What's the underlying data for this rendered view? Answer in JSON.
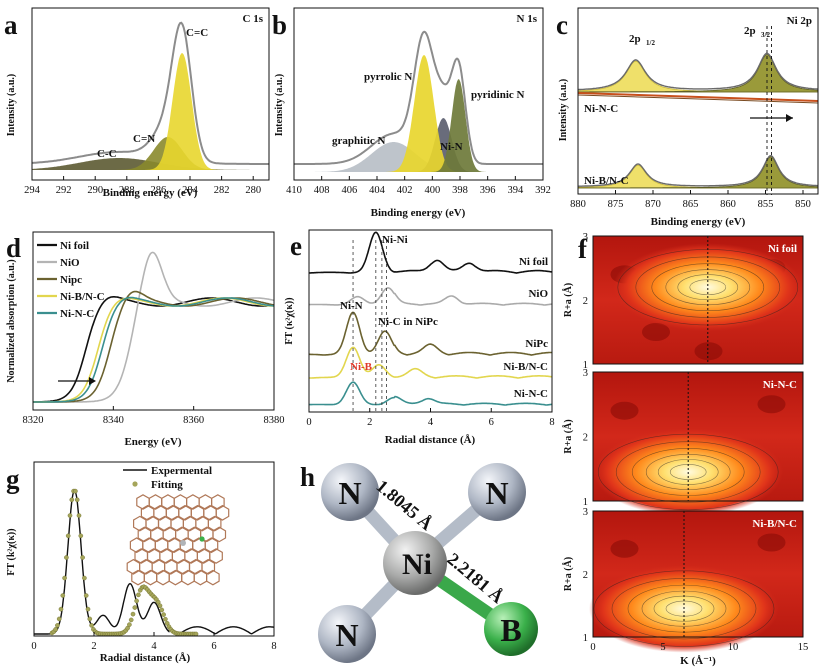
{
  "chart_data": [
    {
      "panel": "a",
      "type": "line",
      "title": "C 1s",
      "xlabel": "Binding energy (eV)",
      "ylabel": "Intensity (a.u.)",
      "xlim": [
        294,
        279
      ],
      "ylim": [
        0,
        1
      ],
      "xticks": [
        294,
        292,
        290,
        288,
        286,
        284,
        282,
        280
      ],
      "peaks": [
        {
          "name": "C=C",
          "center": 284.5,
          "height": 0.78,
          "width": 0.6,
          "color": "#e8d62e"
        },
        {
          "name": "C=N",
          "center": 285.4,
          "height": 0.22,
          "width": 0.9,
          "color": "#8a8a2c"
        },
        {
          "name": "C-C",
          "center": 288.5,
          "height": 0.08,
          "width": 2.5,
          "color": "#5c5a32"
        }
      ],
      "annotations": [
        "C=C",
        "C=N",
        "C-C"
      ]
    },
    {
      "panel": "b",
      "type": "line",
      "title": "N 1s",
      "xlabel": "Binding energy (eV)",
      "ylabel": "Intensity (a.u.)",
      "xlim": [
        410,
        392
      ],
      "ylim": [
        0,
        1
      ],
      "xticks": [
        410,
        408,
        406,
        404,
        402,
        400,
        398,
        396,
        394,
        392
      ],
      "peaks": [
        {
          "name": "pyrrolic N",
          "center": 400.6,
          "height": 0.78,
          "width": 0.7,
          "color": "#e8d62e"
        },
        {
          "name": "pyridinic N",
          "center": 398.1,
          "height": 0.62,
          "width": 0.5,
          "color": "#6e7a3a"
        },
        {
          "name": "Ni-N",
          "center": 399.2,
          "height": 0.36,
          "width": 0.6,
          "color": "#5c6070"
        },
        {
          "name": "graphitic N",
          "center": 402.8,
          "height": 0.2,
          "width": 1.6,
          "color": "#b9bfc7"
        }
      ],
      "annotations": [
        "pyrrolic N",
        "pyridinic N",
        "Ni-N",
        "graphitic N"
      ]
    },
    {
      "panel": "c",
      "type": "line",
      "title": "Ni 2p",
      "xlabel": "Binding energy (eV)",
      "ylabel": "Intensity (a.u.)",
      "xlim": [
        880,
        848
      ],
      "ylim": [
        0,
        1
      ],
      "xticks": [
        880,
        875,
        870,
        865,
        860,
        855,
        850
      ],
      "series": [
        {
          "name": "Ni-N-C",
          "peaks": [
            {
              "name": "2p1/2",
              "center": 872.3,
              "height": 0.28,
              "width": 1.6
            },
            {
              "name": "2p3/2",
              "center": 854.8,
              "height": 0.34,
              "width": 1.5
            }
          ]
        },
        {
          "name": "Ni-B/N-C",
          "peaks": [
            {
              "name": "2p1/2",
              "center": 872.0,
              "height": 0.19,
              "width": 1.4
            },
            {
              "name": "2p3/2",
              "center": 854.3,
              "height": 0.26,
              "width": 1.3
            }
          ]
        }
      ],
      "annotations": [
        "2p",
        "1/2",
        "2p",
        "3/2"
      ]
    },
    {
      "panel": "d",
      "type": "line",
      "xlabel": "Energy (eV)",
      "ylabel": "Normalized absorption (a.u.)",
      "xlim": [
        8320,
        8380
      ],
      "xticks": [
        8320,
        8340,
        8360,
        8380
      ],
      "series": [
        {
          "name": "Ni foil",
          "color": "#111111",
          "edge": 8333,
          "white_line": 1.04
        },
        {
          "name": "NiO",
          "color": "#b4b4b4",
          "edge": 8344,
          "white_line": 1.5
        },
        {
          "name": "Nipc",
          "color": "#6b6230",
          "edge": 8339,
          "white_line": 1.1
        },
        {
          "name": "Ni-B/N-C",
          "color": "#e2d64e",
          "edge": 8336,
          "white_line": 1.02
        },
        {
          "name": "Ni-N-C",
          "color": "#3a8f8f",
          "edge": 8337,
          "white_line": 1.03
        }
      ]
    },
    {
      "panel": "e",
      "type": "line",
      "xlabel": "Radial distance (Å)",
      "ylabel": "FT (κ²χ(κ))",
      "xlim": [
        0,
        8
      ],
      "xticks": [
        0,
        2,
        4,
        6,
        8
      ],
      "series": [
        {
          "name": "Ni foil",
          "color": "#111111",
          "peaks": [
            [
              2.2,
              1.0
            ],
            [
              4.2,
              0.3
            ],
            [
              5.3,
              0.22
            ]
          ]
        },
        {
          "name": "NiO",
          "color": "#aaaaaa",
          "peaks": [
            [
              1.6,
              0.28
            ],
            [
              2.6,
              0.6
            ],
            [
              4.7,
              0.28
            ]
          ]
        },
        {
          "name": "NiPc",
          "color": "#6b6230",
          "peaks": [
            [
              1.45,
              1.0
            ],
            [
              2.5,
              0.55
            ],
            [
              4.0,
              0.2
            ]
          ]
        },
        {
          "name": "Ni-B/N-C",
          "color": "#e2d64e",
          "peaks": [
            [
              1.45,
              0.85
            ],
            [
              2.3,
              0.35
            ],
            [
              3.5,
              0.2
            ]
          ]
        },
        {
          "name": "Ni-N-C",
          "color": "#3a8f8f",
          "peaks": [
            [
              1.45,
              0.8
            ],
            [
              2.8,
              0.25
            ],
            [
              3.9,
              0.2
            ]
          ]
        }
      ],
      "annotations": [
        "Ni-Ni",
        "Ni-N",
        "Ni-C in NiPc",
        "Ni-B"
      ]
    },
    {
      "panel": "f",
      "type": "heatmap",
      "xlabel": "K (Å⁻¹)",
      "ylabel": "R+a (Å)",
      "xlim": [
        0,
        15
      ],
      "ylim": [
        1,
        3
      ],
      "xticks": [
        0,
        5,
        10,
        15
      ],
      "yticks": [
        1,
        2,
        3
      ],
      "maps": [
        {
          "name": "Ni foil",
          "k_max": 8.2,
          "r_max": 2.2
        },
        {
          "name": "Ni-N-C",
          "k_max": 6.8,
          "r_max": 1.45
        },
        {
          "name": "Ni-B/N-C",
          "k_max": 6.5,
          "r_max": 1.45
        }
      ]
    },
    {
      "panel": "g",
      "type": "line",
      "xlabel": "Radial distance (Å)",
      "ylabel": "FT (k²χ(κ))",
      "xlim": [
        0,
        8
      ],
      "xticks": [
        0,
        2,
        4,
        6,
        8
      ],
      "series": [
        {
          "name": "Expermental",
          "color": "#111111",
          "peaks": [
            [
              1.35,
              1.0
            ],
            [
              2.3,
              0.13
            ],
            [
              3.2,
              0.35
            ],
            [
              4.0,
              0.22
            ]
          ]
        },
        {
          "name": "Fitting",
          "color": "#a5a55a",
          "peaks": [
            [
              1.35,
              1.0
            ],
            [
              3.6,
              0.3
            ],
            [
              4.1,
              0.2
            ]
          ]
        }
      ]
    },
    {
      "panel": "h",
      "type": "diagram",
      "atoms": [
        "Ni",
        "N",
        "N",
        "N",
        "B"
      ],
      "bond_labels": [
        "1.8045 Å",
        "2.2181 Å"
      ]
    }
  ],
  "panel_letters": [
    "a",
    "b",
    "c",
    "d",
    "e",
    "f",
    "g",
    "h"
  ]
}
